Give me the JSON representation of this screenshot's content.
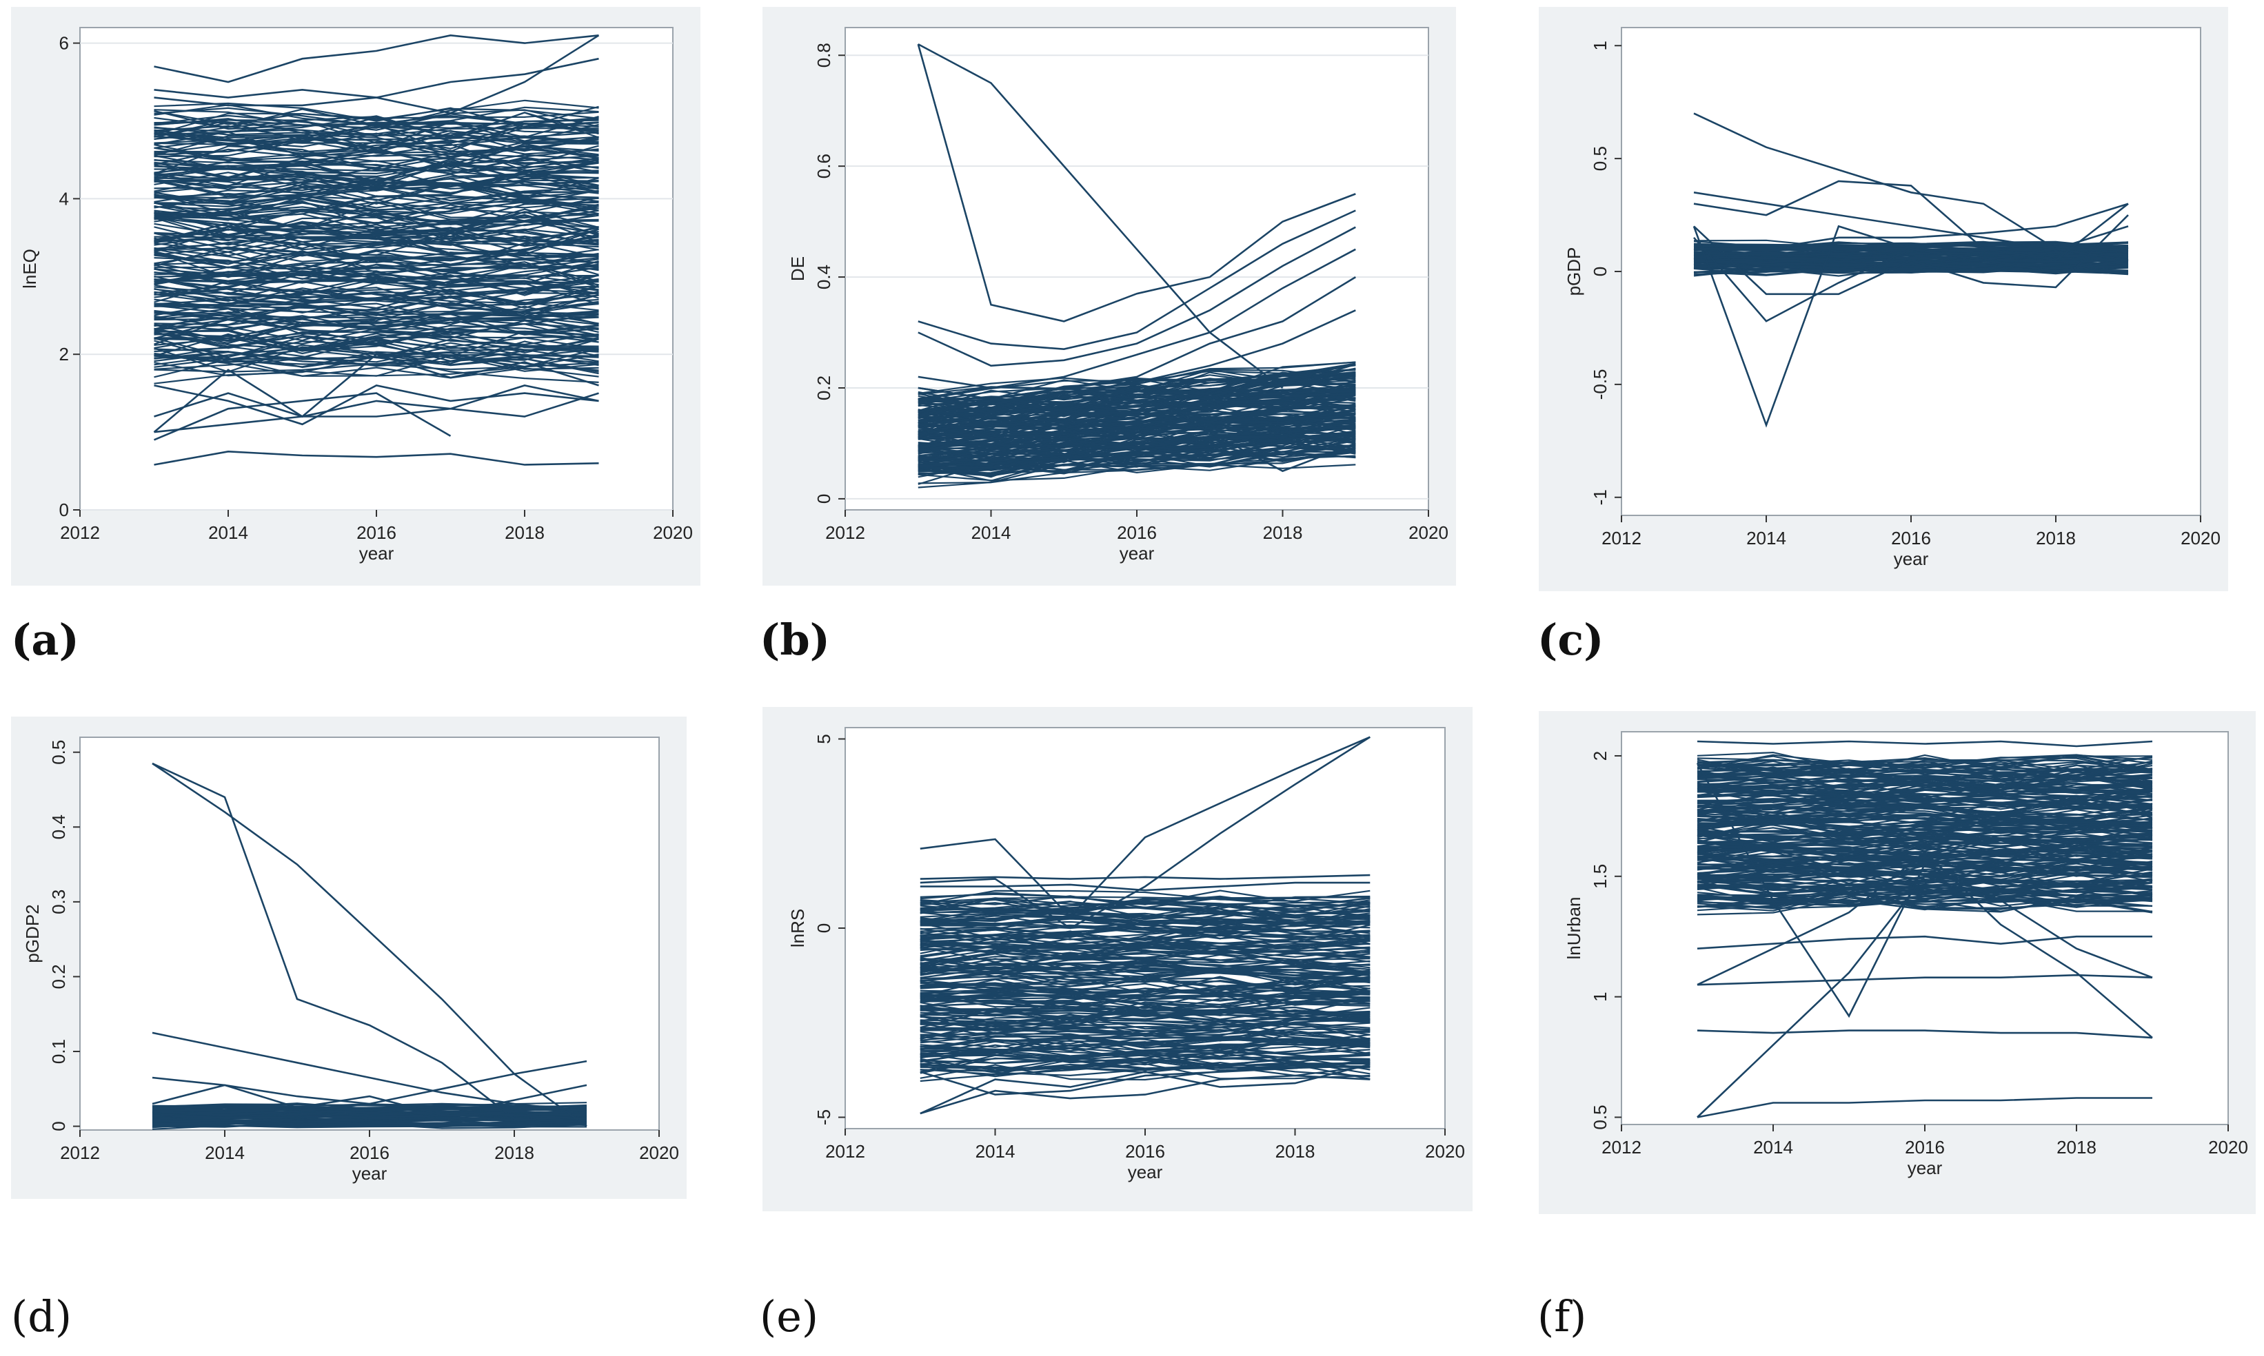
{
  "colors": {
    "line": "#1b4465",
    "frame_bg": "#eef1f3",
    "plot_bg": "#ffffff",
    "grid": "#e2e6ea",
    "text": "#222222"
  },
  "captions": [
    {
      "id": "a",
      "label": "(a)",
      "bold": true
    },
    {
      "id": "b",
      "label": "(b)",
      "bold": true
    },
    {
      "id": "c",
      "label": "(c)",
      "bold": true
    },
    {
      "id": "d",
      "label": "(d)",
      "bold": false
    },
    {
      "id": "e",
      "label": "(e)",
      "bold": false
    },
    {
      "id": "f",
      "label": "(f)",
      "bold": false
    }
  ],
  "chart_data": [
    {
      "id": "a",
      "type": "line",
      "xlabel": "year",
      "ylabel": "lnEQ",
      "xlim": [
        2012,
        2020
      ],
      "ylim": [
        0,
        6.2
      ],
      "xticks": [
        2012,
        2014,
        2016,
        2018,
        2020
      ],
      "xtick_labels": [
        "2012",
        "2014",
        "2016",
        "2018",
        "2020"
      ],
      "yticks": [
        0,
        2,
        4,
        6
      ],
      "ytick_labels": [
        "0",
        "2",
        "4",
        "6"
      ],
      "ytick_rotated": false,
      "grid": true,
      "x": [
        2013,
        2014,
        2015,
        2016,
        2017,
        2018,
        2019
      ],
      "band": {
        "count": 230,
        "lo": 1.8,
        "hi": 5.1,
        "jitter": 0.18
      },
      "series": [
        {
          "name": "top",
          "values": [
            5.7,
            5.5,
            5.8,
            5.9,
            6.1,
            6.0,
            6.1
          ]
        },
        {
          "name": "upper-2",
          "values": [
            5.4,
            5.3,
            5.4,
            5.3,
            5.5,
            5.6,
            5.8
          ]
        },
        {
          "name": "upper-3",
          "values": [
            5.3,
            5.2,
            5.2,
            5.3,
            5.1,
            5.5,
            6.1
          ]
        },
        {
          "name": "low-1",
          "values": [
            1.6,
            1.4,
            1.1,
            1.6,
            1.4,
            1.5,
            1.4
          ]
        },
        {
          "name": "low-2",
          "values": [
            1.2,
            1.5,
            1.2,
            1.4,
            1.3,
            1.6,
            1.4
          ]
        },
        {
          "name": "low-3",
          "values": [
            1.0,
            1.1,
            1.2,
            1.2,
            1.3,
            1.2,
            1.5
          ]
        },
        {
          "name": "low-4",
          "values": [
            0.9,
            1.3,
            1.4,
            1.5,
            0.95,
            null,
            null
          ]
        },
        {
          "name": "bottom",
          "values": [
            0.58,
            0.75,
            0.7,
            0.68,
            0.72,
            0.58,
            0.6
          ]
        },
        {
          "name": "cross",
          "values": [
            1.0,
            1.8,
            1.2,
            2.0,
            1.7,
            1.9,
            1.6
          ]
        }
      ]
    },
    {
      "id": "b",
      "type": "line",
      "xlabel": "year",
      "ylabel": "DE",
      "xlim": [
        2012,
        2020
      ],
      "ylim": [
        -0.02,
        0.85
      ],
      "xticks": [
        2012,
        2014,
        2016,
        2018,
        2020
      ],
      "xtick_labels": [
        "2012",
        "2014",
        "2016",
        "2018",
        "2020"
      ],
      "yticks": [
        0,
        0.2,
        0.4,
        0.6,
        0.8
      ],
      "ytick_labels": [
        "0",
        "0.2",
        "0.4",
        "0.6",
        "0.8"
      ],
      "ytick_rotated": true,
      "grid": true,
      "x": [
        2013,
        2014,
        2015,
        2016,
        2017,
        2018,
        2019
      ],
      "band": {
        "count": 170,
        "lo_start": 0.04,
        "hi_start": 0.18,
        "lo_end": 0.08,
        "hi_end": 0.24,
        "jitter": 0.02
      },
      "series": [
        {
          "name": "spike",
          "values": [
            0.82,
            0.75,
            0.6,
            0.45,
            0.3,
            0.2,
            null
          ]
        },
        {
          "name": "spike-2",
          "values": [
            0.82,
            0.35,
            0.32,
            0.37,
            0.4,
            0.5,
            0.55
          ]
        },
        {
          "name": "rise-1",
          "values": [
            0.32,
            0.28,
            0.27,
            0.3,
            0.38,
            0.46,
            0.52
          ]
        },
        {
          "name": "rise-2",
          "values": [
            0.3,
            0.24,
            0.25,
            0.28,
            0.34,
            0.42,
            0.49
          ]
        },
        {
          "name": "rise-3",
          "values": [
            0.22,
            0.2,
            0.22,
            0.26,
            0.3,
            0.38,
            0.45
          ]
        },
        {
          "name": "rise-4",
          "values": [
            0.2,
            0.18,
            0.2,
            0.22,
            0.28,
            0.32,
            0.4
          ]
        },
        {
          "name": "rise-5",
          "values": [
            0.18,
            0.17,
            0.19,
            0.21,
            0.24,
            0.28,
            0.34
          ]
        },
        {
          "name": "dip",
          "values": [
            0.2,
            0.18,
            0.16,
            0.2,
            0.12,
            0.05,
            0.1
          ]
        }
      ]
    },
    {
      "id": "c",
      "type": "line",
      "xlabel": "year",
      "ylabel": "pGDP",
      "xlim": [
        2012,
        2020
      ],
      "ylim": [
        -1.08,
        1.08
      ],
      "xticks": [
        2012,
        2014,
        2016,
        2018,
        2020
      ],
      "xtick_labels": [
        "2012",
        "2014",
        "2016",
        "2018",
        "2020"
      ],
      "yticks": [
        -1,
        -0.5,
        0,
        0.5,
        1
      ],
      "ytick_labels": [
        "-1",
        "-0.5",
        "0",
        "0.5",
        "1"
      ],
      "ytick_rotated": true,
      "grid": false,
      "x": [
        2013,
        2014,
        2015,
        2016,
        2017,
        2018,
        2019
      ],
      "band": {
        "count": 90,
        "lo": 0.0,
        "hi": 0.12,
        "jitter": 0.02
      },
      "series": [
        {
          "name": "peak",
          "values": [
            0.7,
            0.55,
            0.45,
            0.35,
            0.3,
            0.1,
            0.05
          ]
        },
        {
          "name": "upper-2",
          "values": [
            0.35,
            0.3,
            0.25,
            0.2,
            0.15,
            0.1,
            0.05
          ]
        },
        {
          "name": "upper-3",
          "values": [
            0.3,
            0.25,
            0.4,
            0.38,
            0.1,
            0.05,
            0.3
          ]
        },
        {
          "name": "dip-1",
          "values": [
            0.2,
            -0.68,
            0.2,
            0.1,
            0.05,
            0.0,
            0.05
          ]
        },
        {
          "name": "dip-2",
          "values": [
            0.15,
            -0.22,
            -0.05,
            0.1,
            0.05,
            0.1,
            0.2
          ]
        },
        {
          "name": "dip-3",
          "values": [
            0.2,
            -0.1,
            -0.1,
            0.05,
            -0.05,
            -0.07,
            0.25
          ]
        },
        {
          "name": "rise",
          "values": [
            0.1,
            0.1,
            0.15,
            0.15,
            0.17,
            0.2,
            0.3
          ]
        }
      ]
    },
    {
      "id": "d",
      "type": "line",
      "xlabel": "year",
      "ylabel": "pGDP2",
      "xlim": [
        2012,
        2020
      ],
      "ylim": [
        -0.005,
        0.52
      ],
      "xticks": [
        2012,
        2014,
        2016,
        2018,
        2020
      ],
      "xtick_labels": [
        "2012",
        "2014",
        "2016",
        "2018",
        "2020"
      ],
      "yticks": [
        0,
        0.1,
        0.2,
        0.3,
        0.4,
        0.5
      ],
      "ytick_labels": [
        "0",
        "0.1",
        "0.2",
        "0.3",
        "0.4",
        "0.5"
      ],
      "ytick_rotated": true,
      "grid": false,
      "x": [
        2013,
        2014,
        2015,
        2016,
        2017,
        2018,
        2019
      ],
      "band": {
        "count": 60,
        "lo": 0.0,
        "hi": 0.028,
        "jitter": 0.004
      },
      "series": [
        {
          "name": "peak",
          "values": [
            0.485,
            0.44,
            0.17,
            0.135,
            0.085,
            0.01,
            0.005
          ]
        },
        {
          "name": "peak-2",
          "values": [
            0.485,
            0.42,
            0.35,
            0.26,
            0.17,
            0.07,
            0.0
          ]
        },
        {
          "name": "upper-2",
          "values": [
            0.125,
            0.105,
            0.085,
            0.065,
            0.045,
            0.03,
            0.02
          ]
        },
        {
          "name": "upper-3",
          "values": [
            0.065,
            0.055,
            0.04,
            0.03,
            0.02,
            0.015,
            0.01
          ]
        },
        {
          "name": "rise",
          "values": [
            0.02,
            0.015,
            0.02,
            0.03,
            0.05,
            0.07,
            0.087
          ]
        },
        {
          "name": "wave",
          "values": [
            0.03,
            0.055,
            0.025,
            0.04,
            0.015,
            0.035,
            0.055
          ]
        }
      ]
    },
    {
      "id": "e",
      "type": "line",
      "xlabel": "year",
      "ylabel": "lnRS",
      "xlim": [
        2012,
        2020
      ],
      "ylim": [
        -5.3,
        5.3
      ],
      "xticks": [
        2012,
        2014,
        2016,
        2018,
        2020
      ],
      "xtick_labels": [
        "2012",
        "2014",
        "2016",
        "2018",
        "2020"
      ],
      "yticks": [
        -5,
        0,
        5
      ],
      "ytick_labels": [
        "-5",
        "0",
        "5"
      ],
      "ytick_rotated": true,
      "grid": false,
      "x": [
        2013,
        2014,
        2015,
        2016,
        2017,
        2018,
        2019
      ],
      "band": {
        "count": 200,
        "lo": -3.8,
        "hi": 0.8,
        "jitter": 0.25
      },
      "series": [
        {
          "name": "jump",
          "values": [
            2.1,
            2.35,
            0.3,
            2.4,
            3.3,
            4.2,
            5.05
          ]
        },
        {
          "name": "jump-2",
          "values": [
            1.2,
            1.3,
            0.0,
            1.1,
            2.5,
            3.8,
            5.05
          ]
        },
        {
          "name": "upper-2",
          "values": [
            1.3,
            1.35,
            1.3,
            1.35,
            1.3,
            1.35,
            1.4
          ]
        },
        {
          "name": "upper-3",
          "values": [
            1.1,
            1.1,
            1.15,
            1.0,
            1.1,
            1.2,
            1.2
          ]
        },
        {
          "name": "low-1",
          "values": [
            -4.9,
            -4.3,
            -4.5,
            -4.4,
            -4.0,
            -3.9,
            -4.0
          ]
        },
        {
          "name": "low-2",
          "values": [
            -4.9,
            -4.0,
            -4.2,
            -3.8,
            -4.2,
            -4.1,
            -3.6
          ]
        },
        {
          "name": "low-3",
          "values": [
            -3.8,
            -4.4,
            -4.3,
            -3.9,
            -3.8,
            -3.7,
            -3.5
          ]
        }
      ]
    },
    {
      "id": "f",
      "type": "line",
      "xlabel": "year",
      "ylabel": "lnUrban",
      "xlim": [
        2012,
        2020
      ],
      "ylim": [
        0.47,
        2.1
      ],
      "xticks": [
        2012,
        2014,
        2016,
        2018,
        2020
      ],
      "xtick_labels": [
        "2012",
        "2014",
        "2016",
        "2018",
        "2020"
      ],
      "yticks": [
        0.5,
        1,
        1.5,
        2
      ],
      "ytick_labels": [
        "0.5",
        "1",
        "1.5",
        "2"
      ],
      "ytick_rotated": true,
      "grid": false,
      "x": [
        2013,
        2014,
        2015,
        2016,
        2017,
        2018,
        2019
      ],
      "band": {
        "count": 230,
        "lo": 1.38,
        "hi": 1.98,
        "jitter": 0.04
      },
      "series": [
        {
          "name": "top",
          "values": [
            2.06,
            2.05,
            2.06,
            2.05,
            2.06,
            2.04,
            2.06
          ]
        },
        {
          "name": "cross-1",
          "values": [
            1.97,
            1.4,
            0.92,
            1.55,
            1.4,
            1.2,
            1.08
          ]
        },
        {
          "name": "cross-2",
          "values": [
            0.5,
            0.8,
            1.1,
            1.5,
            1.4,
            1.4,
            1.35
          ]
        },
        {
          "name": "cross-3",
          "values": [
            1.05,
            1.2,
            1.35,
            1.6,
            1.3,
            1.1,
            0.83
          ]
        },
        {
          "name": "mid-1",
          "values": [
            1.2,
            1.22,
            1.24,
            1.25,
            1.22,
            1.25,
            1.25
          ]
        },
        {
          "name": "mid-2",
          "values": [
            1.05,
            1.06,
            1.07,
            1.08,
            1.08,
            1.09,
            1.08
          ]
        },
        {
          "name": "low-1",
          "values": [
            0.86,
            0.85,
            0.86,
            0.86,
            0.85,
            0.85,
            0.83
          ]
        },
        {
          "name": "low-2",
          "values": [
            0.5,
            0.56,
            0.56,
            0.57,
            0.57,
            0.58,
            0.58
          ]
        }
      ]
    }
  ]
}
